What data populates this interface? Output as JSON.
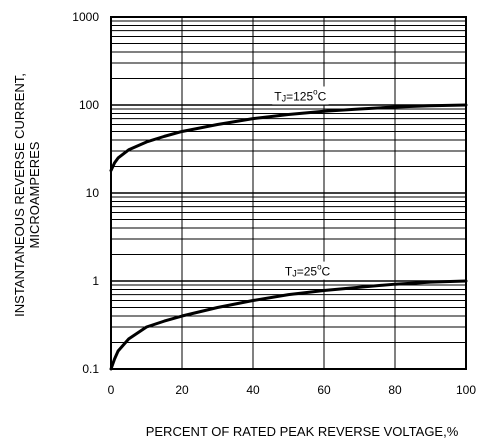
{
  "chart_data": {
    "type": "line",
    "title": "",
    "xlabel": "PERCENT OF RATED PEAK REVERSE VOLTAGE,%",
    "ylabel_lines": [
      "INSTANTANEOUS REVERSE CURRENT,",
      "MICROAMPERES"
    ],
    "xlim": [
      0,
      100
    ],
    "ylim": [
      0.1,
      1000
    ],
    "y_scale": "log",
    "grid": true,
    "x_ticks": [
      0,
      20,
      40,
      60,
      80,
      100
    ],
    "x_tick_labels": [
      "0",
      "20",
      "40",
      "60",
      "80",
      "100"
    ],
    "y_ticks": [
      0.1,
      1,
      10,
      100,
      1000
    ],
    "y_tick_labels": [
      "0.1",
      "1",
      "10",
      "100",
      "1000"
    ],
    "series": [
      {
        "x": [
          0,
          1,
          2,
          5,
          10,
          15,
          20,
          30,
          40,
          50,
          60,
          70,
          80,
          90,
          100
        ],
        "y": [
          18,
          22,
          25,
          31,
          38,
          44,
          50,
          60,
          70,
          78,
          85,
          90,
          95,
          98,
          100
        ],
        "color": "#000000"
      },
      {
        "x": [
          0,
          1,
          2,
          5,
          10,
          15,
          20,
          30,
          40,
          50,
          60,
          70,
          80,
          90,
          100
        ],
        "y": [
          0.1,
          0.13,
          0.16,
          0.22,
          0.3,
          0.35,
          0.4,
          0.5,
          0.6,
          0.7,
          0.78,
          0.85,
          0.92,
          0.97,
          1.0
        ]
      }
    ],
    "annotations": [
      {
        "text_parts": [
          "T",
          "J",
          "=125",
          "o",
          "C"
        ],
        "x": 55,
        "y": 125
      },
      {
        "text_parts": [
          "T",
          "J",
          "=25",
          "o",
          "C"
        ],
        "x": 58,
        "y": 1.28
      }
    ]
  }
}
